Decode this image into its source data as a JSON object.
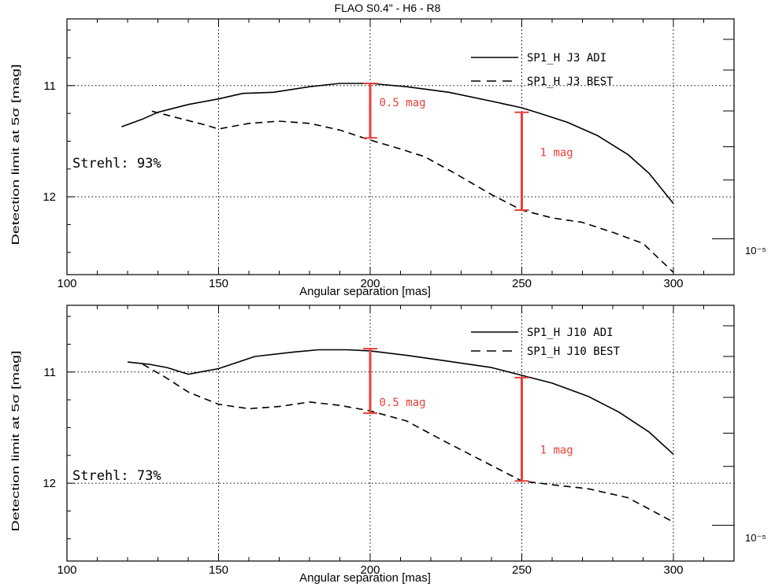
{
  "title": "FLAO S0.4\" - H6 - R8",
  "colors": {
    "annotation": "#e8403a",
    "line": "#000000",
    "grid": "#000000"
  },
  "chart_data": [
    {
      "type": "line",
      "xlabel": "Angular separation [mas]",
      "ylabel": "Detection limit at 5σ [mag]",
      "xlim": [
        100,
        320
      ],
      "ylim": [
        12.7,
        10.4
      ],
      "xticks": [
        100,
        150,
        200,
        250,
        300
      ],
      "xtick_labels": [
        "100",
        "150",
        "200",
        "250",
        "300"
      ],
      "yticks": [
        11,
        12
      ],
      "ytick_labels": [
        "11",
        "12"
      ],
      "grid": "dotted at x=150,200,250,300 and y=11,12",
      "right_axis_label": "10⁻⁵",
      "legend_position": "top-right",
      "strehl_text": "Strehl: 93%",
      "series": [
        {
          "name": "SP1_H J3 ADI",
          "style": "solid",
          "x": [
            118,
            125,
            130,
            140,
            150,
            158,
            168,
            180,
            190,
            200,
            212,
            226,
            240,
            250,
            256,
            265,
            275,
            285,
            292,
            300
          ],
          "y": [
            11.37,
            11.3,
            11.24,
            11.17,
            11.12,
            11.07,
            11.06,
            11.01,
            10.98,
            10.98,
            11.01,
            11.06,
            11.14,
            11.2,
            11.25,
            11.33,
            11.45,
            11.62,
            11.79,
            12.06
          ]
        },
        {
          "name": "SP1_H J3 BEST",
          "style": "dashed",
          "x": [
            128,
            135,
            145,
            150,
            160,
            170,
            180,
            190,
            200,
            210,
            218,
            228,
            240,
            250,
            260,
            270,
            280,
            290,
            300
          ],
          "y": [
            11.23,
            11.28,
            11.35,
            11.39,
            11.34,
            11.32,
            11.34,
            11.4,
            11.49,
            11.57,
            11.64,
            11.79,
            11.98,
            12.12,
            12.19,
            12.23,
            12.32,
            12.42,
            12.68
          ]
        }
      ],
      "annotations": [
        {
          "text": "0.5 mag",
          "x": 200,
          "y_from": 10.98,
          "y_to": 11.47,
          "label_x": 203,
          "label_y": 11.15
        },
        {
          "text": "1 mag",
          "x": 250,
          "y_from": 11.24,
          "y_to": 12.12,
          "label_x": 256,
          "label_y": 11.6
        }
      ]
    },
    {
      "type": "line",
      "xlabel": "Angular separation [mas]",
      "ylabel": "Detection limit at 5σ [mag]",
      "xlim": [
        100,
        320
      ],
      "ylim": [
        12.7,
        10.4
      ],
      "xticks": [
        100,
        150,
        200,
        250,
        300
      ],
      "xtick_labels": [
        "100",
        "150",
        "200",
        "250",
        "300"
      ],
      "yticks": [
        11,
        12
      ],
      "ytick_labels": [
        "11",
        "12"
      ],
      "grid": "dotted at x=150,200,250,300 and y=11,12",
      "right_axis_label": "10⁻⁵",
      "legend_position": "top-right",
      "strehl_text": "Strehl: 73%",
      "series": [
        {
          "name": "SP1_H J10 ADI",
          "style": "solid",
          "x": [
            120,
            127,
            133,
            140,
            150,
            162,
            175,
            183,
            192,
            200,
            212,
            225,
            240,
            250,
            260,
            272,
            282,
            292,
            300
          ],
          "y": [
            10.91,
            10.93,
            10.96,
            11.02,
            10.97,
            10.86,
            10.82,
            10.8,
            10.8,
            10.81,
            10.85,
            10.9,
            10.96,
            11.03,
            11.1,
            11.22,
            11.36,
            11.54,
            11.74
          ]
        },
        {
          "name": "SP1_H J10 BEST",
          "style": "dashed",
          "x": [
            125,
            132,
            140,
            150,
            160,
            170,
            180,
            190,
            200,
            212,
            225,
            240,
            250,
            262,
            272,
            285,
            300
          ],
          "y": [
            10.93,
            11.04,
            11.18,
            11.29,
            11.33,
            11.31,
            11.27,
            11.3,
            11.35,
            11.44,
            11.63,
            11.84,
            11.98,
            12.02,
            12.05,
            12.13,
            12.35
          ]
        }
      ],
      "annotations": [
        {
          "text": "0.5 mag",
          "x": 200,
          "y_from": 10.79,
          "y_to": 11.37,
          "label_x": 203,
          "label_y": 11.27
        },
        {
          "text": "1 mag",
          "x": 250,
          "y_from": 11.05,
          "y_to": 11.98,
          "label_x": 256,
          "label_y": 11.7
        }
      ]
    }
  ]
}
